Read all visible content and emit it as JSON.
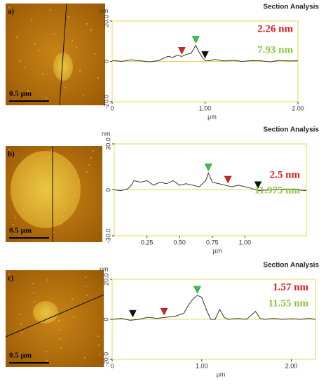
{
  "chart_data": [
    {
      "type": "line",
      "label": "a)",
      "scale_bar": "0.5 µm",
      "title": "Section Analysis",
      "y_unit": "nm",
      "x_unit": "µm",
      "annotations": [
        {
          "text": "2.26 nm",
          "color": "#e0201b"
        },
        {
          "text": "7.93 nm",
          "color": "#8cc63f"
        }
      ],
      "xlim": [
        0,
        2
      ],
      "ylim": [
        -20,
        20
      ],
      "xticks": [
        0,
        {
          "value": 1,
          "label": "1.00"
        },
        {
          "value": 2,
          "label": "2.00"
        }
      ],
      "yticks": [
        {
          "value": 20,
          "label": "20.0"
        },
        0,
        {
          "value": -20,
          "label": "-20.0"
        }
      ],
      "x": [
        0,
        0.1,
        0.2,
        0.3,
        0.4,
        0.5,
        0.55,
        0.6,
        0.65,
        0.7,
        0.75,
        0.8,
        0.85,
        0.9,
        0.93,
        0.97,
        1.0,
        1.05,
        1.1,
        1.2,
        1.3,
        1.4,
        1.5,
        1.6,
        1.7,
        1.8,
        1.9,
        2.0
      ],
      "series": [
        {
          "color": "#333333",
          "values": [
            0.5,
            0,
            0.8,
            0.3,
            -0.2,
            0.4,
            1.5,
            2.5,
            2,
            3,
            2.5,
            3.5,
            4,
            8,
            5,
            2,
            0.5,
            0.3,
            1,
            0.2,
            0.5,
            0,
            0.4,
            0.3,
            -0.2,
            0.5,
            0.2,
            0.3
          ]
        }
      ],
      "cursors": [
        {
          "color": "#e0201b",
          "x": 0.75,
          "y": 2.5
        },
        {
          "color": "#2ecc40",
          "x": 0.9,
          "y": 8
        },
        {
          "color": "#111111",
          "x": 1.0,
          "y": 0.5
        }
      ]
    },
    {
      "type": "line",
      "label": "b)",
      "scale_bar": "0.5 µm",
      "title": "Section Analysis",
      "y_unit": "nm",
      "x_unit": "µm",
      "annotations": [
        {
          "text": "2.5 nm",
          "color": "#e0201b"
        },
        {
          "text": "11.975 nm",
          "color": "#8cc63f"
        }
      ],
      "xlim": [
        0,
        1.47
      ],
      "ylim": [
        -30,
        30
      ],
      "xticks": [
        {
          "value": 0.25,
          "label": "0.25"
        },
        {
          "value": 0.5,
          "label": "0.50"
        },
        {
          "value": 0.75,
          "label": "0.75"
        },
        {
          "value": 1,
          "label": "1.00"
        }
      ],
      "yticks": [
        {
          "value": 30,
          "label": "30.0"
        },
        0,
        {
          "value": -30,
          "label": "-30.0"
        }
      ],
      "x": [
        0,
        0.05,
        0.1,
        0.13,
        0.15,
        0.2,
        0.25,
        0.3,
        0.35,
        0.4,
        0.45,
        0.5,
        0.55,
        0.6,
        0.65,
        0.7,
        0.72,
        0.75,
        0.8,
        0.85,
        0.9,
        0.95,
        1.0,
        1.05,
        1.1,
        1.2,
        1.3,
        1.4,
        1.47
      ],
      "series": [
        {
          "color": "#333333",
          "values": [
            0,
            -0.5,
            0.5,
            3,
            6,
            5,
            6,
            3,
            5,
            4,
            6,
            3,
            4,
            3,
            2,
            6,
            11,
            5,
            4,
            3,
            2,
            3,
            2,
            1,
            -0.5,
            0,
            0.5,
            0,
            -0.5
          ]
        }
      ],
      "cursors": [
        {
          "color": "#2ecc40",
          "x": 0.72,
          "y": 11
        },
        {
          "color": "#e0201b",
          "x": 0.87,
          "y": 3
        },
        {
          "color": "#111111",
          "x": 1.1,
          "y": -0.5
        }
      ]
    },
    {
      "type": "line",
      "label": "c)",
      "scale_bar": "0.5 µm",
      "title": "Section Analysis",
      "y_unit": "nm",
      "x_unit": "µm",
      "annotations": [
        {
          "text": "1.57 nm",
          "color": "#e0201b"
        },
        {
          "text": "11.55 nm",
          "color": "#8cc63f"
        }
      ],
      "xlim": [
        0,
        2.27
      ],
      "ylim": [
        -20,
        20
      ],
      "xticks": [
        0,
        {
          "value": 1,
          "label": "1.00"
        },
        {
          "value": 2,
          "label": "2.00"
        }
      ],
      "yticks": [
        {
          "value": 20,
          "label": "20.0"
        },
        0,
        {
          "value": -20,
          "label": "-20.0"
        }
      ],
      "x": [
        0,
        0.1,
        0.2,
        0.3,
        0.4,
        0.5,
        0.6,
        0.7,
        0.8,
        0.85,
        0.9,
        0.95,
        1.0,
        1.05,
        1.1,
        1.15,
        1.2,
        1.25,
        1.3,
        1.4,
        1.5,
        1.6,
        1.65,
        1.7,
        1.8,
        1.9,
        2.0,
        2.1,
        2.2,
        2.27
      ],
      "series": [
        {
          "color": "#333333",
          "values": [
            0,
            0.5,
            -0.5,
            0,
            1,
            0.5,
            1,
            1.5,
            3,
            7,
            10,
            12,
            11,
            5,
            0,
            0,
            5,
            1,
            0,
            0.5,
            0,
            4,
            0.5,
            0,
            0.5,
            0,
            0.3,
            0,
            0.5,
            0
          ]
        }
      ],
      "cursors": [
        {
          "color": "#111111",
          "x": 0.23,
          "y": 0
        },
        {
          "color": "#e0201b",
          "x": 0.58,
          "y": 1
        },
        {
          "color": "#2ecc40",
          "x": 0.95,
          "y": 12
        }
      ]
    }
  ]
}
